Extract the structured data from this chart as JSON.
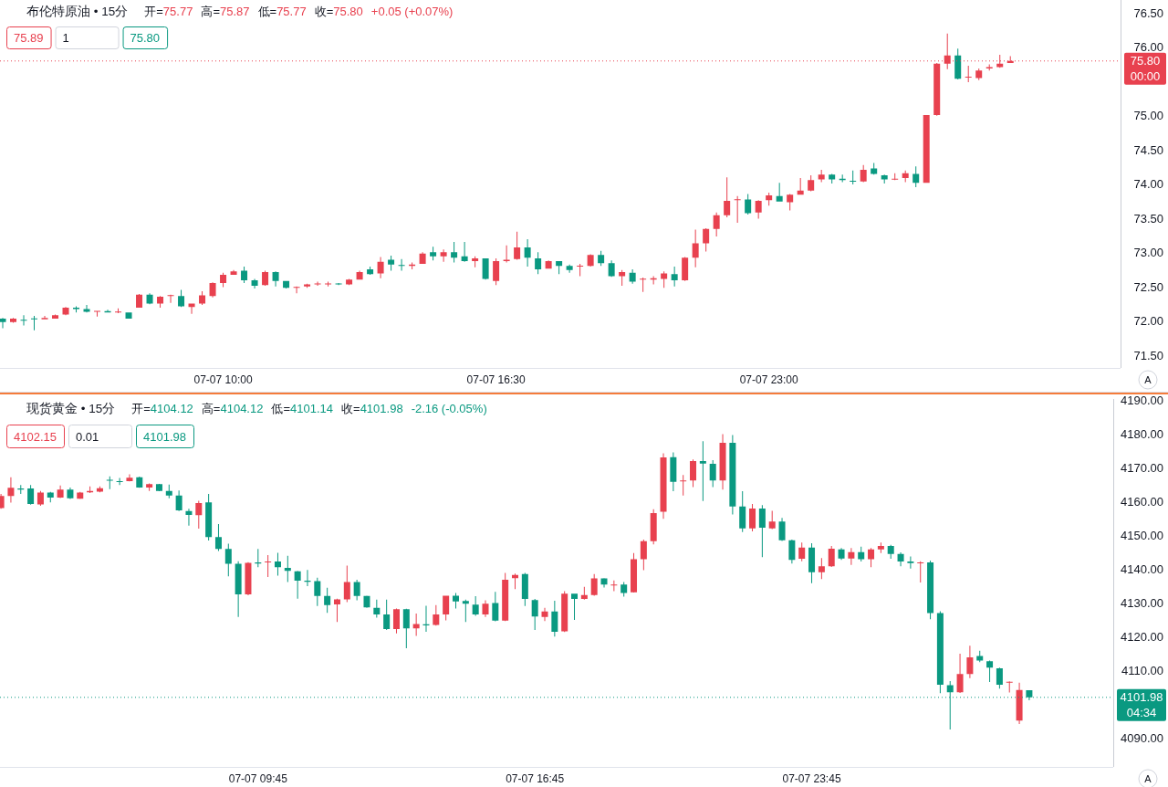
{
  "chart_data": [
    {
      "type": "candlestick",
      "title": "布伦特原油 • 15分",
      "categories": [
        null,
        null,
        null,
        null,
        null,
        null,
        null,
        null,
        null,
        null,
        null,
        null,
        null,
        null,
        null,
        null,
        null,
        null,
        null,
        null,
        null,
        "07-07 10:00",
        null,
        null,
        null,
        null,
        null,
        null,
        null,
        null,
        null,
        null,
        null,
        null,
        null,
        null,
        null,
        null,
        null,
        null,
        null,
        null,
        null,
        null,
        null,
        null,
        null,
        "07-07 16:30",
        null,
        null,
        null,
        null,
        null,
        null,
        null,
        null,
        null,
        null,
        null,
        null,
        null,
        null,
        null,
        null,
        null,
        null,
        null,
        null,
        null,
        null,
        null,
        null,
        null,
        "07-07 23:00",
        null,
        null,
        null,
        null,
        null,
        null,
        null,
        null,
        null,
        null,
        null,
        null,
        null,
        null,
        null,
        null,
        null,
        null,
        null,
        null,
        null,
        null,
        null,
        null,
        null,
        null,
        null,
        null,
        null,
        null,
        null,
        null,
        null
      ],
      "ohlc": [
        [
          72.04,
          72.05,
          71.9,
          71.99
        ],
        [
          71.99,
          72.05,
          71.98,
          72.04
        ],
        [
          72.02,
          72.09,
          71.94,
          72.01
        ],
        [
          72.04,
          72.08,
          71.87,
          72.03
        ],
        [
          72.03,
          72.08,
          72.03,
          72.05
        ],
        [
          72.04,
          72.1,
          72.04,
          72.09
        ],
        [
          72.1,
          72.21,
          72.09,
          72.2
        ],
        [
          72.2,
          72.22,
          72.13,
          72.18
        ],
        [
          72.18,
          72.24,
          72.13,
          72.14
        ],
        [
          72.14,
          72.15,
          72.07,
          72.15
        ],
        [
          72.15,
          72.17,
          72.13,
          72.13
        ],
        [
          72.13,
          72.19,
          72.12,
          72.14
        ],
        [
          72.13,
          72.13,
          72.04,
          72.04
        ],
        [
          72.2,
          72.4,
          72.2,
          72.39
        ],
        [
          72.39,
          72.41,
          72.25,
          72.26
        ],
        [
          72.26,
          72.37,
          72.2,
          72.36
        ],
        [
          72.37,
          72.39,
          72.27,
          72.38
        ],
        [
          72.37,
          72.46,
          72.21,
          72.22
        ],
        [
          72.21,
          72.26,
          72.11,
          72.26
        ],
        [
          72.26,
          72.44,
          72.24,
          72.38
        ],
        [
          72.37,
          72.57,
          72.35,
          72.56
        ],
        [
          72.56,
          72.71,
          72.5,
          72.68
        ],
        [
          72.68,
          72.75,
          72.68,
          72.73
        ],
        [
          72.74,
          72.8,
          72.56,
          72.6
        ],
        [
          72.6,
          72.62,
          72.48,
          72.52
        ],
        [
          72.53,
          72.74,
          72.52,
          72.72
        ],
        [
          72.72,
          72.73,
          72.51,
          72.59
        ],
        [
          72.59,
          72.59,
          72.48,
          72.49
        ],
        [
          72.49,
          72.51,
          72.41,
          72.5
        ],
        [
          72.51,
          72.55,
          72.49,
          72.54
        ],
        [
          72.54,
          72.58,
          72.52,
          72.55
        ],
        [
          72.54,
          72.58,
          72.51,
          72.55
        ],
        [
          72.55,
          72.56,
          72.53,
          72.54
        ],
        [
          72.54,
          72.62,
          72.53,
          72.61
        ],
        [
          72.61,
          72.74,
          72.61,
          72.72
        ],
        [
          72.76,
          72.8,
          72.68,
          72.69
        ],
        [
          72.7,
          72.94,
          72.63,
          72.87
        ],
        [
          72.9,
          72.96,
          72.74,
          72.83
        ],
        [
          72.82,
          72.91,
          72.74,
          72.81
        ],
        [
          72.81,
          72.86,
          72.76,
          72.83
        ],
        [
          72.84,
          73.01,
          72.84,
          72.99
        ],
        [
          73.01,
          73.09,
          72.89,
          72.95
        ],
        [
          72.95,
          73.05,
          72.87,
          73.01
        ],
        [
          73.01,
          73.16,
          72.86,
          72.93
        ],
        [
          72.95,
          73.16,
          72.87,
          72.88
        ],
        [
          72.88,
          72.95,
          72.79,
          72.92
        ],
        [
          72.92,
          72.92,
          72.61,
          72.62
        ],
        [
          72.59,
          72.92,
          72.53,
          72.88
        ],
        [
          72.88,
          73.11,
          72.86,
          72.9
        ],
        [
          72.91,
          73.31,
          72.9,
          73.08
        ],
        [
          73.08,
          73.2,
          72.8,
          72.93
        ],
        [
          72.92,
          73.01,
          72.69,
          72.76
        ],
        [
          72.77,
          72.89,
          72.77,
          72.88
        ],
        [
          72.88,
          72.88,
          72.69,
          72.81
        ],
        [
          72.81,
          72.83,
          72.71,
          72.75
        ],
        [
          72.8,
          72.84,
          72.66,
          72.81
        ],
        [
          72.81,
          72.98,
          72.8,
          72.97
        ],
        [
          72.97,
          73.03,
          72.81,
          72.85
        ],
        [
          72.85,
          72.89,
          72.65,
          72.66
        ],
        [
          72.66,
          72.75,
          72.52,
          72.72
        ],
        [
          72.71,
          72.76,
          72.55,
          72.58
        ],
        [
          72.61,
          72.64,
          72.43,
          72.62
        ],
        [
          72.61,
          72.66,
          72.54,
          72.63
        ],
        [
          72.62,
          72.73,
          72.49,
          72.7
        ],
        [
          72.69,
          72.8,
          72.51,
          72.6
        ],
        [
          72.6,
          72.94,
          72.59,
          72.93
        ],
        [
          72.93,
          73.34,
          72.79,
          73.14
        ],
        [
          73.14,
          73.36,
          73.02,
          73.35
        ],
        [
          73.35,
          73.59,
          73.24,
          73.55
        ],
        [
          73.55,
          74.1,
          73.52,
          73.76
        ],
        [
          73.77,
          73.83,
          73.44,
          73.78
        ],
        [
          73.78,
          73.86,
          73.56,
          73.58
        ],
        [
          73.59,
          73.77,
          73.5,
          73.76
        ],
        [
          73.77,
          73.88,
          73.69,
          73.84
        ],
        [
          73.83,
          74.02,
          73.75,
          73.75
        ],
        [
          73.74,
          73.86,
          73.62,
          73.85
        ],
        [
          73.85,
          74.09,
          73.85,
          73.91
        ],
        [
          73.91,
          74.13,
          73.9,
          74.06
        ],
        [
          74.07,
          74.21,
          74.03,
          74.14
        ],
        [
          74.14,
          74.15,
          74.01,
          74.07
        ],
        [
          74.08,
          74.14,
          74.03,
          74.06
        ],
        [
          74.05,
          74.2,
          74.0,
          74.04
        ],
        [
          74.04,
          74.28,
          74.03,
          74.21
        ],
        [
          74.23,
          74.31,
          74.14,
          74.15
        ],
        [
          74.13,
          74.14,
          74.01,
          74.07
        ],
        [
          74.07,
          74.16,
          74.06,
          74.08
        ],
        [
          74.09,
          74.2,
          74.03,
          74.16
        ],
        [
          74.15,
          74.26,
          73.96,
          74.02
        ],
        [
          74.02,
          75.01,
          74.02,
          75.01
        ],
        [
          75.01,
          75.77,
          75.0,
          75.76
        ],
        [
          75.76,
          76.2,
          75.68,
          75.88
        ],
        [
          75.88,
          75.98,
          75.53,
          75.54
        ],
        [
          75.56,
          75.73,
          75.49,
          75.57
        ],
        [
          75.55,
          75.69,
          75.52,
          75.66
        ],
        [
          75.69,
          75.75,
          75.66,
          75.71
        ],
        [
          75.71,
          75.89,
          75.7,
          75.76
        ],
        [
          75.77,
          75.87,
          75.77,
          75.8
        ],
        null,
        null,
        null,
        null,
        null,
        null,
        null,
        null,
        null,
        null
      ],
      "colors": [
        "#0a9981",
        "#e8414f",
        "#0a9981",
        "#0a9981",
        "#e8414f",
        "#e8414f",
        "#e8414f",
        "#0a9981",
        "#0a9981",
        "#e8414f",
        "#0a9981",
        "#e8414f",
        "#0a9981",
        "#e8414f",
        "#0a9981",
        "#e8414f",
        "#e8414f",
        "#0a9981",
        "#e8414f",
        "#e8414f",
        "#e8414f",
        "#e8414f",
        "#e8414f",
        "#0a9981",
        "#0a9981",
        "#e8414f",
        "#0a9981",
        "#0a9981",
        "#e8414f",
        "#e8414f",
        "#e8414f",
        "#e8414f",
        "#0a9981",
        "#e8414f",
        "#e8414f",
        "#0a9981",
        "#e8414f",
        "#0a9981",
        "#0a9981",
        "#e8414f",
        "#e8414f",
        "#0a9981",
        "#e8414f",
        "#0a9981",
        "#0a9981",
        "#e8414f",
        "#0a9981",
        "#e8414f",
        "#e8414f",
        "#e8414f",
        "#0a9981",
        "#0a9981",
        "#e8414f",
        "#0a9981",
        "#0a9981",
        "#e8414f",
        "#e8414f",
        "#0a9981",
        "#0a9981",
        "#e8414f",
        "#0a9981",
        "#e8414f",
        "#e8414f",
        "#e8414f",
        "#0a9981",
        "#e8414f",
        "#e8414f",
        "#e8414f",
        "#e8414f",
        "#e8414f",
        "#e8414f",
        "#0a9981",
        "#e8414f",
        "#e8414f",
        "#0a9981",
        "#e8414f",
        "#e8414f",
        "#e8414f",
        "#e8414f",
        "#0a9981",
        "#0a9981",
        "#0a9981",
        "#e8414f",
        "#0a9981",
        "#0a9981",
        "#e8414f",
        "#e8414f",
        "#0a9981",
        "#e8414f",
        "#e8414f",
        "#e8414f",
        "#0a9981",
        "#e8414f",
        "#e8414f",
        "#e8414f",
        "#e8414f",
        "#e8414f",
        null,
        null,
        null,
        null,
        null,
        null,
        null,
        null,
        null,
        null
      ],
      "ylim": [
        71.32,
        76.69
      ],
      "yticks": [
        {
          "value": 71.5,
          "label": "71.50"
        },
        {
          "value": 72,
          "label": "72.00"
        },
        {
          "value": 72.5,
          "label": "72.50"
        },
        {
          "value": 73,
          "label": "73.00"
        },
        {
          "value": 73.5,
          "label": "73.50"
        },
        {
          "value": 74,
          "label": "74.00"
        },
        {
          "value": 74.5,
          "label": "74.50"
        },
        {
          "value": 75,
          "label": "75.00"
        },
        {
          "value": 76,
          "label": "76.00"
        },
        {
          "value": 76.5,
          "label": "76.50"
        }
      ],
      "ref_lines": [
        {
          "axis": "y",
          "value": 75.8,
          "label": "75.80",
          "color": "#e8414f",
          "line_style": "dotted"
        }
      ],
      "annotations": [
        "开=75.77",
        "高=75.87",
        "低=75.77",
        "收=75.80",
        "+0.05 (+0.07%)",
        "75.89",
        "1",
        "75.80",
        "00:00",
        "A"
      ]
    },
    {
      "type": "candlestick",
      "title": "现货黄金 • 15分",
      "categories": [
        null,
        null,
        null,
        null,
        null,
        null,
        null,
        null,
        null,
        null,
        null,
        null,
        null,
        null,
        null,
        null,
        null,
        null,
        null,
        null,
        null,
        null,
        null,
        null,
        null,
        null,
        "07-07 09:45",
        null,
        null,
        null,
        null,
        null,
        null,
        null,
        null,
        null,
        null,
        null,
        null,
        null,
        null,
        null,
        null,
        null,
        null,
        null,
        null,
        null,
        null,
        null,
        null,
        null,
        null,
        null,
        "07-07 16:45",
        null,
        null,
        null,
        null,
        null,
        null,
        null,
        null,
        null,
        null,
        null,
        null,
        null,
        null,
        null,
        null,
        null,
        null,
        null,
        null,
        null,
        null,
        null,
        null,
        null,
        null,
        null,
        "07-07 23:45",
        null,
        null,
        null,
        null,
        null,
        null,
        null,
        null,
        null,
        null,
        null,
        null,
        null,
        null,
        null,
        null,
        null,
        null,
        null,
        null,
        null,
        null,
        null,
        null,
        null,
        null,
        null,
        null,
        null,
        null
      ],
      "ohlc": [
        [
          4158.0,
          4162.2,
          4157.8,
          4161.6
        ],
        [
          4161.6,
          4167.1,
          4159.6,
          4164.0
        ],
        [
          4163.8,
          4164.8,
          4162.2,
          4163.5
        ],
        [
          4163.8,
          4164.8,
          4159.0,
          4159.2
        ],
        [
          4159.1,
          4163.1,
          4158.7,
          4162.6
        ],
        [
          4162.6,
          4162.8,
          4159.7,
          4161.1
        ],
        [
          4161.1,
          4164.7,
          4161.0,
          4163.5
        ],
        [
          4163.5,
          4164.1,
          4160.7,
          4160.9
        ],
        [
          4160.8,
          4162.8,
          4160.7,
          4162.6
        ],
        [
          4162.7,
          4164.4,
          4162.5,
          4163.1
        ],
        [
          4162.9,
          4164.4,
          4162.7,
          4163.9
        ],
        [
          4166.4,
          4167.4,
          4163.6,
          4166.1
        ],
        [
          4166.0,
          4166.9,
          4164.8,
          4165.7
        ],
        [
          4166.0,
          4168.0,
          4165.9,
          4167.0
        ],
        [
          4167.1,
          4167.3,
          4164.0,
          4164.1
        ],
        [
          4164.1,
          4165.3,
          4163.1,
          4165.1
        ],
        [
          4165.1,
          4165.2,
          4163.0,
          4163.1
        ],
        [
          4163.1,
          4165.0,
          4160.9,
          4161.7
        ],
        [
          4161.7,
          4163.2,
          4157.1,
          4157.3
        ],
        [
          4157.1,
          4157.8,
          4152.8,
          4156.0
        ],
        [
          4155.9,
          4160.2,
          4151.9,
          4159.5
        ],
        [
          4159.7,
          4162.2,
          4148.4,
          4149.4
        ],
        [
          4149.4,
          4153.3,
          4145.3,
          4145.9
        ],
        [
          4145.9,
          4147.5,
          4137.8,
          4141.5
        ],
        [
          4141.5,
          4142.3,
          4125.8,
          4132.5
        ],
        [
          4132.5,
          4142.0,
          4132.2,
          4141.8
        ],
        [
          4141.9,
          4145.9,
          4140.5,
          4141.6
        ],
        [
          4141.9,
          4144.1,
          4137.6,
          4142.2
        ],
        [
          4142.2,
          4144.8,
          4138.0,
          4140.5
        ],
        [
          4140.3,
          4143.9,
          4136.1,
          4139.4
        ],
        [
          4139.3,
          4139.4,
          4131.2,
          4136.5
        ],
        [
          4136.5,
          4139.7,
          4134.9,
          4136.2
        ],
        [
          4136.4,
          4137.4,
          4129.0,
          4132.0
        ],
        [
          4132.0,
          4134.4,
          4127.0,
          4129.3
        ],
        [
          4129.5,
          4131.2,
          4124.3,
          4131.0
        ],
        [
          4131.0,
          4141.0,
          4130.2,
          4136.1
        ],
        [
          4136.1,
          4136.8,
          4130.7,
          4132.0
        ],
        [
          4132.0,
          4132.1,
          4128.5,
          4128.6
        ],
        [
          4128.5,
          4130.9,
          4125.6,
          4126.5
        ],
        [
          4126.5,
          4130.9,
          4121.9,
          4122.2
        ],
        [
          4122.2,
          4128.3,
          4120.9,
          4128.1
        ],
        [
          4128.1,
          4128.2,
          4116.5,
          4122.4
        ],
        [
          4122.4,
          4126.8,
          4120.2,
          4123.7
        ],
        [
          4123.6,
          4129.1,
          4121.4,
          4123.3
        ],
        [
          4123.4,
          4129.3,
          4123.2,
          4126.5
        ],
        [
          4126.5,
          4132.1,
          4124.8,
          4132.1
        ],
        [
          4132.1,
          4132.9,
          4128.3,
          4130.4
        ],
        [
          4130.5,
          4130.9,
          4124.3,
          4129.7
        ],
        [
          4129.4,
          4131.9,
          4126.1,
          4126.5
        ],
        [
          4126.5,
          4130.7,
          4125.8,
          4129.7
        ],
        [
          4129.9,
          4133.2,
          4124.5,
          4124.7
        ],
        [
          4124.7,
          4138.8,
          4124.6,
          4136.8
        ],
        [
          4137.3,
          4138.6,
          4134.0,
          4138.2
        ],
        [
          4138.5,
          4138.8,
          4129.0,
          4131.1
        ],
        [
          4130.8,
          4131.1,
          4121.9,
          4125.9
        ],
        [
          4125.8,
          4128.5,
          4124.6,
          4127.4
        ],
        [
          4127.4,
          4130.6,
          4120.0,
          4121.4
        ],
        [
          4121.5,
          4133.4,
          4121.3,
          4132.7
        ],
        [
          4132.7,
          4132.7,
          4124.9,
          4131.1
        ],
        [
          4131.1,
          4134.7,
          4130.9,
          4132.3
        ],
        [
          4132.3,
          4138.5,
          4132.1,
          4137.2
        ],
        [
          4137.2,
          4137.3,
          4134.5,
          4135.4
        ],
        [
          4135.1,
          4136.6,
          4133.4,
          4135.4
        ],
        [
          4135.4,
          4136.1,
          4131.8,
          4132.9
        ],
        [
          4133.1,
          4144.7,
          4133.0,
          4142.9
        ],
        [
          4142.9,
          4148.7,
          4139.6,
          4148.2
        ],
        [
          4148.2,
          4157.7,
          4147.3,
          4156.5
        ],
        [
          4156.9,
          4174.2,
          4154.8,
          4173.0
        ],
        [
          4173.1,
          4174.5,
          4163.0,
          4165.8
        ],
        [
          4165.9,
          4167.8,
          4161.7,
          4166.2
        ],
        [
          4166.2,
          4172.4,
          4164.2,
          4171.9
        ],
        [
          4171.9,
          4177.8,
          4160.1,
          4171.2
        ],
        [
          4171.1,
          4172.2,
          4164.2,
          4166.2
        ],
        [
          4166.2,
          4179.9,
          4163.5,
          4177.3
        ],
        [
          4177.3,
          4179.6,
          4156.1,
          4158.5
        ],
        [
          4158.5,
          4163.0,
          4150.9,
          4152.0
        ],
        [
          4152.0,
          4159.2,
          4151.1,
          4157.9
        ],
        [
          4157.9,
          4158.9,
          4143.5,
          4152.2
        ],
        [
          4152.0,
          4157.2,
          4151.8,
          4154.0
        ],
        [
          4154.0,
          4155.1,
          4148.3,
          4148.5
        ],
        [
          4148.5,
          4148.7,
          4141.6,
          4142.7
        ],
        [
          4143.0,
          4147.8,
          4142.3,
          4146.3
        ],
        [
          4146.3,
          4147.6,
          4135.8,
          4139.0
        ],
        [
          4139.0,
          4143.2,
          4137.0,
          4140.8
        ],
        [
          4140.8,
          4146.8,
          4140.6,
          4146.0
        ],
        [
          4145.8,
          4146.2,
          4142.7,
          4143.1
        ],
        [
          4143.1,
          4146.2,
          4141.2,
          4145.0
        ],
        [
          4145.0,
          4146.6,
          4142.2,
          4142.9
        ],
        [
          4142.9,
          4146.2,
          4140.5,
          4145.8
        ],
        [
          4145.8,
          4147.8,
          4144.7,
          4146.8
        ],
        [
          4146.8,
          4147.1,
          4143.0,
          4144.4
        ],
        [
          4144.4,
          4144.9,
          4140.8,
          4142.2
        ],
        [
          4142.2,
          4143.7,
          4140.1,
          4141.7
        ],
        [
          4141.7,
          4142.3,
          4136.0,
          4141.9
        ],
        [
          4141.9,
          4142.5,
          4125.1,
          4126.9
        ],
        [
          4126.9,
          4127.5,
          4103.2,
          4105.7
        ],
        [
          4105.6,
          4106.8,
          4092.5,
          4103.5
        ],
        [
          4103.5,
          4114.9,
          4103.3,
          4108.9
        ],
        [
          4108.9,
          4117.3,
          4107.7,
          4113.8
        ],
        [
          4114.2,
          4115.8,
          4112.4,
          4112.9
        ],
        [
          4112.7,
          4112.9,
          4106.5,
          4110.8
        ],
        [
          4110.6,
          4110.8,
          4104.6,
          4105.7
        ],
        [
          4106.3,
          4106.7,
          4103.4,
          4106.6
        ],
        [
          4095.1,
          4106.3,
          4094.1,
          4104.2
        ],
        [
          4104.12,
          4104.12,
          4101.14,
          4101.98
        ],
        null,
        null,
        null,
        null,
        null,
        null,
        null,
        null
      ],
      "colors": [
        "#e8414f",
        "#e8414f",
        "#0a9981",
        "#0a9981",
        "#e8414f",
        "#0a9981",
        "#e8414f",
        "#0a9981",
        "#e8414f",
        "#e8414f",
        "#e8414f",
        "#0a9981",
        "#0a9981",
        "#e8414f",
        "#0a9981",
        "#e8414f",
        "#0a9981",
        "#0a9981",
        "#0a9981",
        "#0a9981",
        "#e8414f",
        "#0a9981",
        "#0a9981",
        "#0a9981",
        "#0a9981",
        "#e8414f",
        "#0a9981",
        "#e8414f",
        "#0a9981",
        "#0a9981",
        "#0a9981",
        "#0a9981",
        "#0a9981",
        "#0a9981",
        "#e8414f",
        "#e8414f",
        "#0a9981",
        "#0a9981",
        "#0a9981",
        "#0a9981",
        "#e8414f",
        "#0a9981",
        "#e8414f",
        "#0a9981",
        "#e8414f",
        "#e8414f",
        "#0a9981",
        "#0a9981",
        "#0a9981",
        "#e8414f",
        "#0a9981",
        "#e8414f",
        "#e8414f",
        "#0a9981",
        "#0a9981",
        "#e8414f",
        "#0a9981",
        "#e8414f",
        "#0a9981",
        "#e8414f",
        "#e8414f",
        "#0a9981",
        "#e8414f",
        "#0a9981",
        "#e8414f",
        "#e8414f",
        "#e8414f",
        "#e8414f",
        "#0a9981",
        "#e8414f",
        "#e8414f",
        "#0a9981",
        "#0a9981",
        "#e8414f",
        "#0a9981",
        "#0a9981",
        "#e8414f",
        "#0a9981",
        "#e8414f",
        "#0a9981",
        "#0a9981",
        "#e8414f",
        "#0a9981",
        "#e8414f",
        "#e8414f",
        "#0a9981",
        "#e8414f",
        "#0a9981",
        "#e8414f",
        "#e8414f",
        "#0a9981",
        "#0a9981",
        "#0a9981",
        "#e8414f",
        "#0a9981",
        "#0a9981",
        "#0a9981",
        "#e8414f",
        "#e8414f",
        "#0a9981",
        "#0a9981",
        "#0a9981",
        "#e8414f",
        "#e8414f",
        "#0a9981",
        null,
        null,
        null,
        null,
        null,
        null,
        null,
        null
      ],
      "ylim": [
        4081.4,
        4190.3
      ],
      "yticks": [
        {
          "value": 4090,
          "label": "4090.00"
        },
        {
          "value": 4110,
          "label": "4110.00"
        },
        {
          "value": 4120,
          "label": "4120.00"
        },
        {
          "value": 4130,
          "label": "4130.00"
        },
        {
          "value": 4140,
          "label": "4140.00"
        },
        {
          "value": 4150,
          "label": "4150.00"
        },
        {
          "value": 4160,
          "label": "4160.00"
        },
        {
          "value": 4170,
          "label": "4170.00"
        },
        {
          "value": 4180,
          "label": "4180.00"
        },
        {
          "value": 4190,
          "label": "4190.00"
        }
      ],
      "ref_lines": [
        {
          "axis": "y",
          "value": 4101.98,
          "label": "4101.98",
          "color": "#0a9981",
          "line_style": "dotted"
        }
      ],
      "annotations": [
        "开=4104.12",
        "高=4104.12",
        "低=4101.14",
        "收=4101.98",
        "-2.16 (-0.05%)",
        "4102.15",
        "0.01",
        "4101.98",
        "04:34",
        "A"
      ]
    }
  ]
}
